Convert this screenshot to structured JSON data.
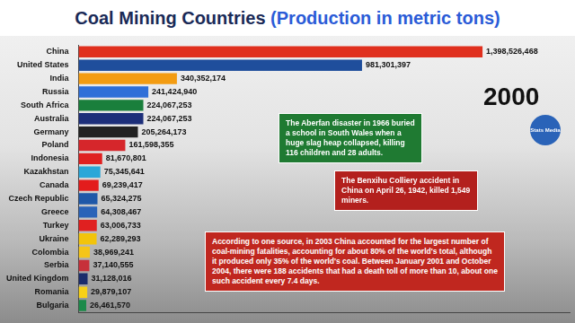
{
  "chart_data": {
    "type": "bar",
    "orientation": "horizontal",
    "title": "Coal Mining Countries",
    "subtitle": "(Production in metric tons)",
    "categories": [
      "China",
      "United States",
      "India",
      "Russia",
      "South Africa",
      "Australia",
      "Germany",
      "Poland",
      "Indonesia",
      "Kazakhstan",
      "Canada",
      "Czech Republic",
      "Greece",
      "Turkey",
      "Ukraine",
      "Colombia",
      "Serbia",
      "United Kingdom",
      "Romania",
      "Bulgaria"
    ],
    "values": [
      1398526468,
      981301397,
      340352174,
      241424940,
      224067253,
      224067253,
      205264173,
      161598355,
      81670801,
      75345641,
      69239417,
      65324275,
      64308467,
      63006733,
      62289293,
      38969241,
      37140555,
      31128016,
      29879107,
      26461570
    ],
    "value_labels": [
      "1,398,526,468",
      "981,301,397",
      "340,352,174",
      "241,424,940",
      "224,067,253",
      "224,067,253",
      "205,264,173",
      "161,598,355",
      "81,670,801",
      "75,345,641",
      "69,239,417",
      "65,324,275",
      "64,308,467",
      "63,006,733",
      "62,289,293",
      "38,969,241",
      "37,140,555",
      "31,128,016",
      "29,879,107",
      "26,461,570"
    ],
    "colors": [
      "#e0301e",
      "#1f4e9c",
      "#f39c12",
      "#2f6fd8",
      "#1a7f3c",
      "#1d2f7a",
      "#222222",
      "#d6262b",
      "#e02020",
      "#2aa7d8",
      "#e31c1c",
      "#1f58a8",
      "#2a63b8",
      "#e02020",
      "#f2c40c",
      "#f5c518",
      "#c7303a",
      "#1b2c6b",
      "#f7d117",
      "#1c8a4a"
    ],
    "xlim": [
      0,
      1700000000
    ],
    "tick_labels": "y",
    "grid": false,
    "data_labels": true,
    "annotations": [
      "2000",
      "Stats Media",
      "The Aberfan disaster in 1966 buried a school in South Wales when a huge slag heap collapsed, killing 116 children and 28 adults.",
      "The Benxihu Colliery accident in China on April 26, 1942, killed 1,549 miners.",
      "According to one source, in 2003 China accounted for the largest number of coal-mining fatalities, accounting for about 80% of the world's total, although it produced only 35% of the world's coal. Between January 2001 and October 2004, there were 188 accidents that had a death toll of more than 10, about one such accident every 7.4 days."
    ]
  }
}
